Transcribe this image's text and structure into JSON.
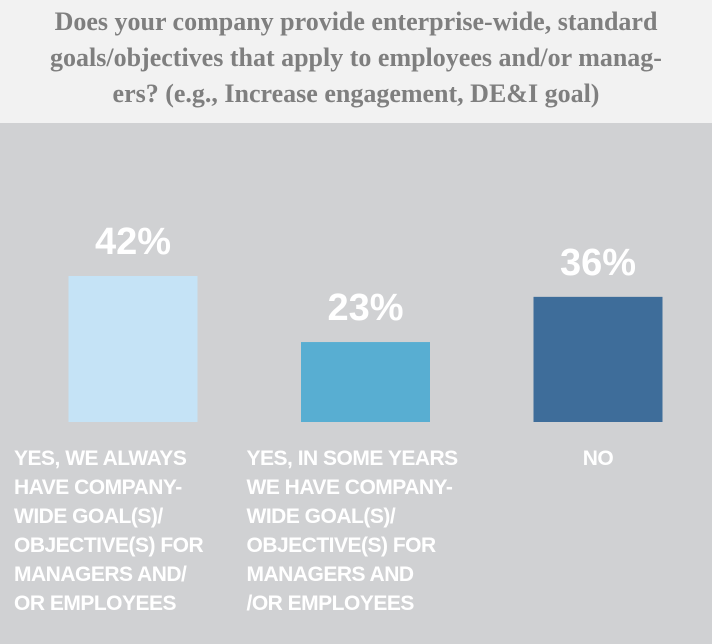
{
  "chart_data": {
    "type": "bar",
    "title": "Does your company provide enterprise-wide, standard\ngoals/objectives that apply to employees and/or manag-\ners? (e.g., Increase engagement, DE&I goal)",
    "categories": [
      "YES, WE ALWAYS\nHAVE COMPANY-\nWIDE GOAL(S)/\nOBJECTIVE(S) FOR\nMANAGERS AND/\nOR EMPLOYEES",
      "YES, IN SOME YEARS\nWE HAVE COMPANY-\nWIDE GOAL(S)/\nOBJECTIVE(S) FOR\nMANAGERS AND\n/OR EMPLOYEES",
      "NO"
    ],
    "values": [
      42,
      23,
      36
    ],
    "value_labels": [
      "42%",
      "23%",
      "36%"
    ],
    "colors": [
      "#c5e3f6",
      "#58aed2",
      "#3e6d9a"
    ]
  }
}
